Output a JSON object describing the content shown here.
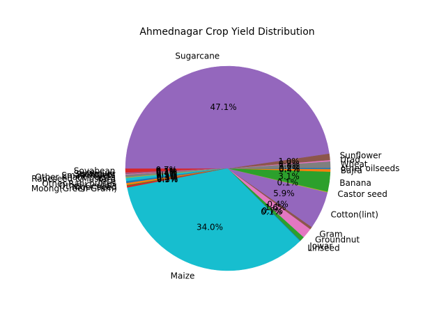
{
  "chart_data": {
    "type": "pie",
    "title": "Ahmednagar Crop Yield Distribution",
    "start_angle_deg": 180,
    "counterclock": true,
    "autopct_format": "{v}%",
    "slices": [
      {
        "label": "Soyabean",
        "value": 0.7,
        "pct_text": "0.7%",
        "color": "#d62728"
      },
      {
        "label": "Sesamum",
        "value": 0.1,
        "pct_text": "0.1%",
        "color": "#9467bd"
      },
      {
        "label": "Safflower",
        "value": 0.1,
        "pct_text": "0.1%",
        "color": "#8c564b"
      },
      {
        "label": "Small millets",
        "value": 0.1,
        "pct_text": "0.1%",
        "color": "#e377c2"
      },
      {
        "label": "Other Kharif pulses",
        "value": 0.4,
        "pct_text": "0.4%",
        "color": "#7f7f7f"
      },
      {
        "label": "Rapeseed &Mustard",
        "value": 0.1,
        "pct_text": "0.1%",
        "color": "#bcbd22"
      },
      {
        "label": "Rice",
        "value": 0.5,
        "pct_text": "0.5%",
        "color": "#17becf"
      },
      {
        "label": "Other Rabi pulses",
        "value": 0.3,
        "pct_text": "0.3%",
        "color": "#1f77b4"
      },
      {
        "label": "Other Cereals",
        "value": 0.3,
        "pct_text": "0.3%",
        "color": "#ff7f0e"
      },
      {
        "label": "Niger seed",
        "value": 0.1,
        "pct_text": "0.1%",
        "color": "#2ca02c"
      },
      {
        "label": "Moong(Green Gram)",
        "value": 0.3,
        "pct_text": "0.3%",
        "color": "#d62728"
      },
      {
        "label": "Maize",
        "value": 34.0,
        "pct_text": "34.0%",
        "color": "#17becf"
      },
      {
        "label": "Linseed",
        "value": 0.1,
        "pct_text": "0.1%",
        "color": "#1f77b4"
      },
      {
        "label": "Jowar",
        "value": 0.7,
        "pct_text": "0.7%",
        "color": "#2ca02c"
      },
      {
        "label": "Groundnut",
        "value": 1.6,
        "pct_text": "1.6%",
        "color": "#e377c2"
      },
      {
        "label": "Gram",
        "value": 0.4,
        "pct_text": "0.4%",
        "color": "#8c564b"
      },
      {
        "label": "Cotton(lint)",
        "value": 5.9,
        "pct_text": "5.9%",
        "color": "#9467bd"
      },
      {
        "label": "Castor seed",
        "value": 0.1,
        "pct_text": "0.1%",
        "color": "#bcbd22"
      },
      {
        "label": "Banana",
        "value": 3.1,
        "pct_text": "3.1%",
        "color": "#2ca02c"
      },
      {
        "label": "Bajra",
        "value": 0.4,
        "pct_text": "0.4%",
        "color": "#ff7f0e"
      },
      {
        "label": "other oilseeds",
        "value": 0.2,
        "pct_text": "0.2%",
        "color": "#1f77b4"
      },
      {
        "label": "Wheat",
        "value": 1.0,
        "pct_text": "1.0%",
        "color": "#7f7f7f"
      },
      {
        "label": "Urad",
        "value": 0.2,
        "pct_text": "0.2%",
        "color": "#e377c2"
      },
      {
        "label": "Sunflower",
        "value": 1.0,
        "pct_text": "1.0%",
        "color": "#8c564b"
      },
      {
        "label": "Sugarcane",
        "value": 47.1,
        "pct_text": "47.1%",
        "color": "#9467bd"
      }
    ]
  }
}
